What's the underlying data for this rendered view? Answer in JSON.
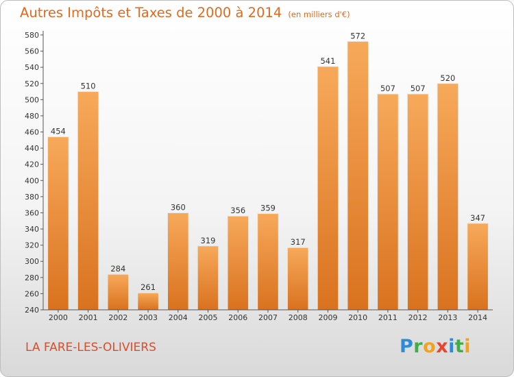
{
  "header": {
    "title": "Autres Impôts et Taxes de 2000 à 2014",
    "unit": "(en milliers d'€)"
  },
  "footer": {
    "commune": "LA FARE-LES-OLIVIERS",
    "logo_letters": [
      "P",
      "r",
      "o",
      "x",
      "i",
      "t",
      "i"
    ]
  },
  "colors": {
    "title": "#e06a1e",
    "bar_top": "#f7a95a",
    "bar_bottom": "#d9721f",
    "commune": "#d94f2b"
  },
  "chart_data": {
    "type": "bar",
    "title": "Autres Impôts et Taxes de 2000 à 2014",
    "xlabel": "",
    "ylabel": "",
    "categories": [
      "2000",
      "2001",
      "2002",
      "2003",
      "2004",
      "2005",
      "2006",
      "2007",
      "2008",
      "2009",
      "2010",
      "2011",
      "2012",
      "2013",
      "2014"
    ],
    "values": [
      454,
      510,
      284,
      261,
      360,
      319,
      356,
      359,
      317,
      541,
      572,
      507,
      507,
      520,
      347
    ],
    "ylim": [
      240,
      580
    ],
    "ytick_step": 20,
    "grid": false,
    "data_labels": true
  }
}
